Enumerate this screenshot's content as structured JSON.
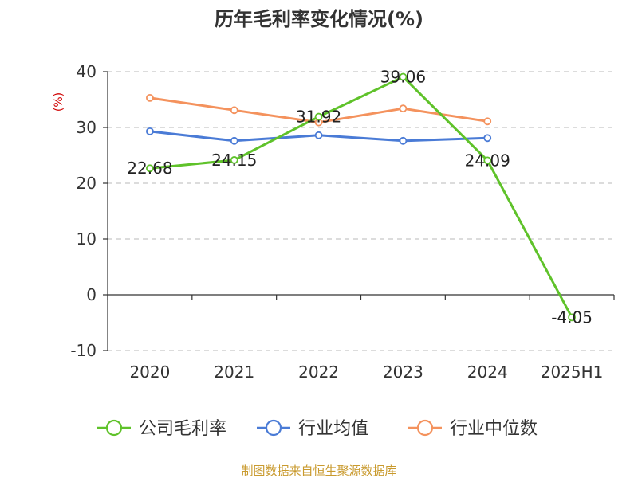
{
  "chart_data": {
    "type": "line",
    "title": "历年毛利率变化情况(%)",
    "ylabel": "(%)",
    "categories": [
      "2020",
      "2021",
      "2022",
      "2023",
      "2024",
      "2025H1"
    ],
    "ylim": [
      -10,
      40
    ],
    "yticks": [
      -10,
      0,
      10,
      20,
      30,
      40
    ],
    "grid": true,
    "legend_position": "bottom",
    "series": [
      {
        "name": "公司毛利率",
        "color": "#5fc22a",
        "values": [
          22.68,
          24.15,
          31.92,
          39.06,
          24.09,
          -4.05
        ],
        "labels": [
          "22.68",
          "24.15",
          "31.92",
          "39.06",
          "24.09",
          "-4.05"
        ]
      },
      {
        "name": "行业均值",
        "color": "#4a7bd6",
        "values": [
          29.3,
          27.6,
          28.6,
          27.6,
          28.1,
          null
        ]
      },
      {
        "name": "行业中位数",
        "color": "#f4925d",
        "values": [
          35.3,
          33.1,
          30.9,
          33.4,
          31.1,
          null
        ]
      }
    ],
    "source": "制图数据来自恒生聚源数据库"
  }
}
